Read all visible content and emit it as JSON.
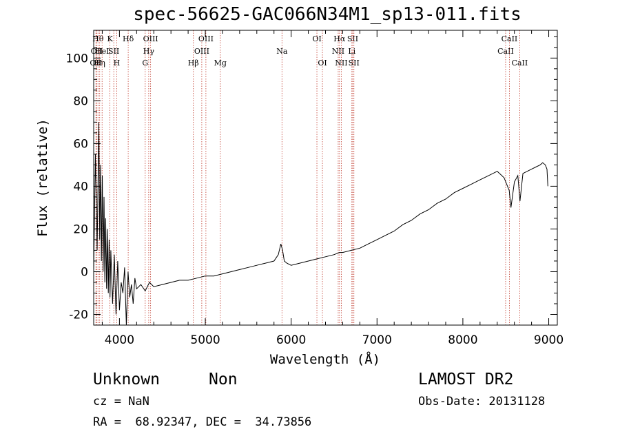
{
  "header": {
    "title": "spec-56625-GAC066N34M1_sp13-011.fits"
  },
  "info": {
    "object_class": "Unknown",
    "object_subclass": "Non",
    "survey": "LAMOST DR2",
    "cz": "cz = NaN",
    "obs_date": "Obs-Date: 20131128",
    "ra_dec": "RA =  68.92347, DEC =  34.73856"
  },
  "chart_data": {
    "type": "line",
    "title": "spec-56625-GAC066N34M1_sp13-011.fits",
    "xlabel": "Wavelength (Å)",
    "ylabel": "Flux (relative)",
    "xlim": [
      3700,
      9100
    ],
    "ylim": [
      -25,
      113
    ],
    "xticks": [
      4000,
      5000,
      6000,
      7000,
      8000,
      9000
    ],
    "yticks": [
      -20,
      0,
      20,
      40,
      60,
      80,
      100
    ],
    "grid": false,
    "line_color": "#000000",
    "marker_color": "#c0392b",
    "series": [
      {
        "values_x": [
          3700,
          3720,
          3740,
          3760,
          3770,
          3780,
          3790,
          3800,
          3810,
          3820,
          3830,
          3840,
          3850,
          3860,
          3870,
          3880,
          3890,
          3900,
          3920,
          3940,
          3960,
          3980,
          4000,
          4020,
          4040,
          4060,
          4080,
          4100,
          4120,
          4140,
          4160,
          4180,
          4200,
          4250,
          4300,
          4350,
          4400,
          4500,
          4600,
          4700,
          4800,
          4900,
          5000,
          5100,
          5200,
          5300,
          5400,
          5500,
          5600,
          5700,
          5800,
          5850,
          5880,
          5900,
          5920,
          5950,
          6000,
          6100,
          6200,
          6300,
          6400,
          6500,
          6562,
          6600,
          6700,
          6800,
          6900,
          7000,
          7100,
          7200,
          7300,
          7400,
          7500,
          7600,
          7700,
          7800,
          7900,
          8000,
          8100,
          8200,
          8300,
          8400,
          8480,
          8520,
          8540,
          8560,
          8600,
          8640,
          8665,
          8700,
          8750,
          8800,
          8850,
          8900,
          8930,
          8960,
          8980,
          8990
        ],
        "values_y": [
          0,
          55,
          10,
          70,
          15,
          50,
          5,
          45,
          0,
          35,
          -5,
          25,
          -8,
          20,
          -10,
          15,
          -12,
          10,
          -15,
          8,
          -20,
          5,
          -18,
          -5,
          -10,
          2,
          -25,
          0,
          -12,
          -6,
          -15,
          -3,
          -8,
          -6,
          -9,
          -5,
          -7,
          -6,
          -5,
          -4,
          -4,
          -3,
          -2,
          -2,
          -1,
          0,
          1,
          2,
          3,
          4,
          5,
          8,
          13,
          10,
          5,
          4,
          3,
          4,
          5,
          6,
          7,
          8,
          9,
          9,
          10,
          11,
          13,
          15,
          17,
          19,
          22,
          24,
          27,
          29,
          32,
          34,
          37,
          39,
          41,
          43,
          45,
          47,
          44,
          40,
          38,
          30,
          42,
          45,
          33,
          46,
          47,
          48,
          49,
          50,
          51,
          50,
          48,
          40
        ]
      }
    ],
    "line_markers": [
      {
        "wavelength": 3726,
        "label": "OII",
        "row": 2
      },
      {
        "wavelength": 3736,
        "label": "OII",
        "row": 1
      },
      {
        "wavelength": 3750,
        "label": "Hθ",
        "row": 0
      },
      {
        "wavelength": 3770,
        "label": "Hη",
        "row": 2
      },
      {
        "wavelength": 3798,
        "label": "HeI",
        "row": 1
      },
      {
        "wavelength": 3889,
        "label": "K",
        "row": 0
      },
      {
        "wavelength": 3934,
        "label": "SII",
        "row": 1
      },
      {
        "wavelength": 3968,
        "label": "H",
        "row": 2
      },
      {
        "wavelength": 4102,
        "label": "Hδ",
        "row": 0
      },
      {
        "wavelength": 4300,
        "label": "G",
        "row": 2
      },
      {
        "wavelength": 4341,
        "label": "Hγ",
        "row": 1
      },
      {
        "wavelength": 4363,
        "label": "OIII",
        "row": 0
      },
      {
        "wavelength": 4861,
        "label": "Hβ",
        "row": 2
      },
      {
        "wavelength": 4959,
        "label": "OIII",
        "row": 1
      },
      {
        "wavelength": 5007,
        "label": "OIII",
        "row": 0
      },
      {
        "wavelength": 5175,
        "label": "Mg",
        "row": 2
      },
      {
        "wavelength": 5893,
        "label": "Na",
        "row": 1
      },
      {
        "wavelength": 6300,
        "label": "OI",
        "row": 0
      },
      {
        "wavelength": 6364,
        "label": "OI",
        "row": 2
      },
      {
        "wavelength": 6548,
        "label": "NII",
        "row": 1
      },
      {
        "wavelength": 6563,
        "label": "Hα",
        "row": 0
      },
      {
        "wavelength": 6584,
        "label": "NII",
        "row": 2
      },
      {
        "wavelength": 6707,
        "label": "Li",
        "row": 1
      },
      {
        "wavelength": 6717,
        "label": "SII",
        "row": 0
      },
      {
        "wavelength": 6731,
        "label": "SII",
        "row": 2
      },
      {
        "wavelength": 8498,
        "label": "CaII",
        "row": 1
      },
      {
        "wavelength": 8542,
        "label": "CaII",
        "row": 0
      },
      {
        "wavelength": 8662,
        "label": "CaII",
        "row": 2
      }
    ]
  }
}
